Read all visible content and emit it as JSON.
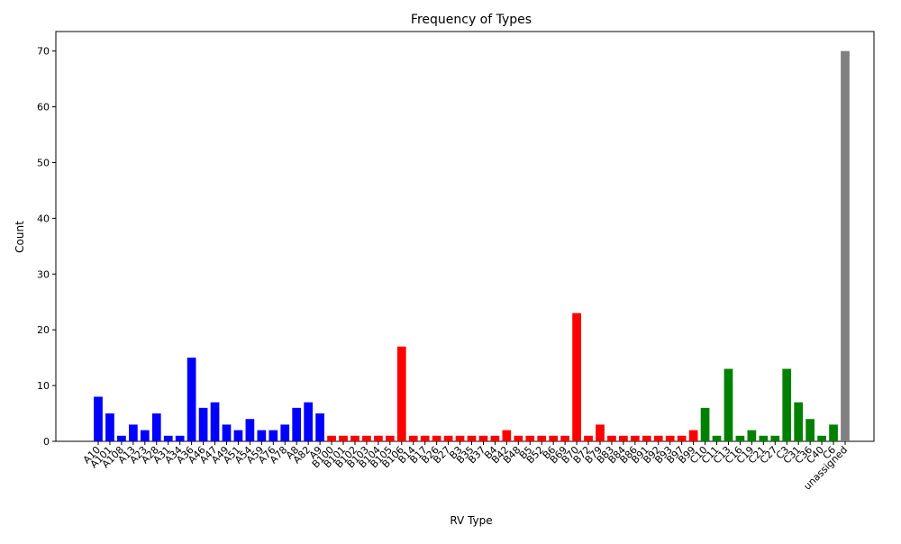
{
  "chart_data": {
    "type": "bar",
    "title": "Frequency of Types",
    "x_label": "RV Type",
    "y_label": "Count",
    "categories": [
      "A10",
      "A101",
      "A108",
      "A13",
      "A23",
      "A28",
      "A31",
      "A34",
      "A36",
      "A46",
      "A47",
      "A49",
      "A51",
      "A54",
      "A59",
      "A76",
      "A78",
      "A8",
      "A82",
      "A9",
      "B100",
      "B101",
      "B102",
      "B103",
      "B104",
      "B105",
      "B106",
      "B14",
      "B17",
      "B26",
      "B27",
      "B3",
      "B35",
      "B37",
      "B4",
      "B42",
      "B48",
      "B5",
      "B52",
      "B6",
      "B69",
      "B70",
      "B72",
      "B79",
      "B83",
      "B84",
      "B86",
      "B91",
      "B92",
      "B93",
      "B97",
      "B99",
      "C10",
      "C11",
      "C13",
      "C16",
      "C19",
      "C21",
      "C27",
      "C3",
      "C31",
      "C36",
      "C40",
      "C6",
      "unassigned"
    ],
    "values": [
      8,
      5,
      1,
      3,
      2,
      5,
      1,
      1,
      15,
      6,
      7,
      3,
      2,
      4,
      2,
      2,
      3,
      6,
      7,
      5,
      1,
      1,
      1,
      1,
      1,
      1,
      17,
      1,
      1,
      1,
      1,
      1,
      1,
      1,
      1,
      2,
      1,
      1,
      1,
      1,
      1,
      23,
      1,
      3,
      1,
      1,
      1,
      1,
      1,
      1,
      1,
      2,
      6,
      1,
      13,
      1,
      2,
      1,
      1,
      13,
      7,
      4,
      1,
      3,
      70
    ],
    "colors": [
      "blue",
      "blue",
      "blue",
      "blue",
      "blue",
      "blue",
      "blue",
      "blue",
      "blue",
      "blue",
      "blue",
      "blue",
      "blue",
      "blue",
      "blue",
      "blue",
      "blue",
      "blue",
      "blue",
      "blue",
      "red",
      "red",
      "red",
      "red",
      "red",
      "red",
      "red",
      "red",
      "red",
      "red",
      "red",
      "red",
      "red",
      "red",
      "red",
      "red",
      "red",
      "red",
      "red",
      "red",
      "red",
      "red",
      "red",
      "red",
      "red",
      "red",
      "red",
      "red",
      "red",
      "red",
      "red",
      "red",
      "green",
      "green",
      "green",
      "green",
      "green",
      "green",
      "green",
      "green",
      "green",
      "green",
      "green",
      "green",
      "gray"
    ],
    "ylim": [
      0,
      73.5
    ],
    "yticks": [
      0,
      10,
      20,
      30,
      40,
      50,
      60,
      70
    ],
    "grid": false
  }
}
